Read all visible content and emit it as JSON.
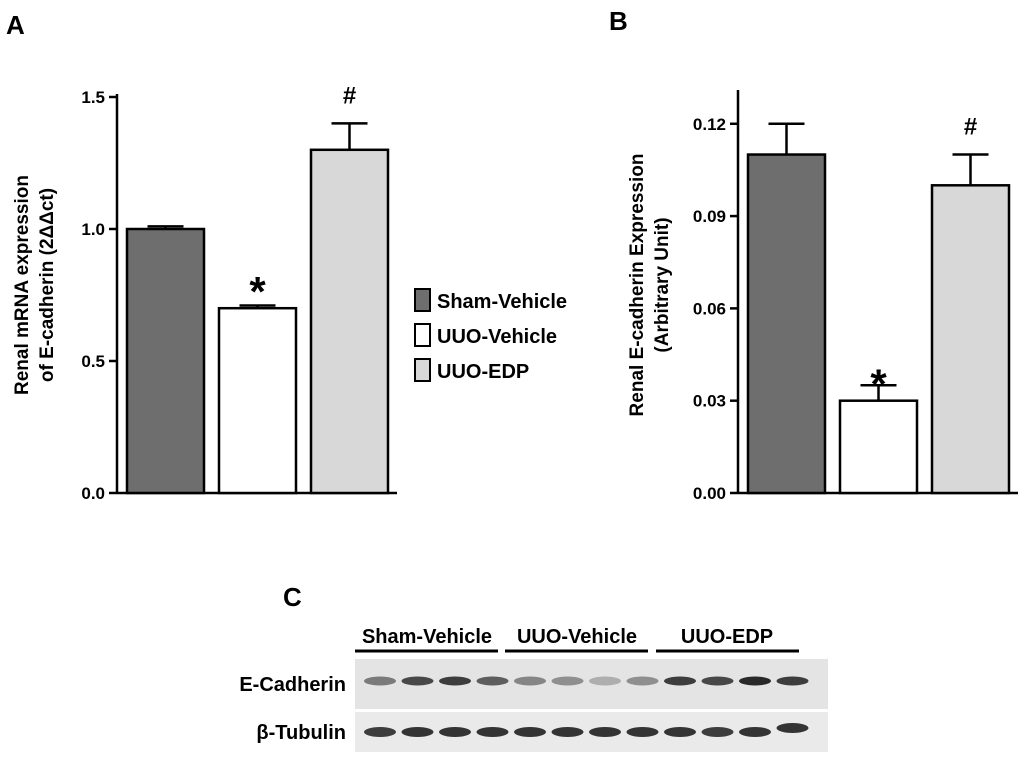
{
  "panels": {
    "a": "A",
    "b": "B",
    "c": "C"
  },
  "colors": {
    "sham_vehicle": "#6e6e6e",
    "uuo_vehicle": "#ffffff",
    "uuo_edp": "#d8d8d8"
  },
  "legend": {
    "items": [
      {
        "label": "Sham-Vehicle",
        "color": "#6e6e6e"
      },
      {
        "label": "UUO-Vehicle",
        "color": "#ffffff"
      },
      {
        "label": "UUO-EDP",
        "color": "#d8d8d8"
      }
    ]
  },
  "chart_data": [
    {
      "type": "bar",
      "panel": "A",
      "categories": [
        "Sham-Vehicle",
        "UUO-Vehicle",
        "UUO-EDP"
      ],
      "values": [
        1.0,
        0.7,
        1.3
      ],
      "errors": [
        0.01,
        0.01,
        0.1
      ],
      "significance": [
        "",
        "*",
        "#"
      ],
      "ylabel_line1": "Renal mRNA expression",
      "ylabel_line2": "of E-cadherin (2ΔΔct)",
      "ylim": [
        0,
        1.5
      ],
      "yticks": [
        0.0,
        0.5,
        1.0,
        1.5
      ],
      "ytick_labels": [
        "0.0",
        "0.5",
        "1.0",
        "1.5"
      ]
    },
    {
      "type": "bar",
      "panel": "B",
      "categories": [
        "Sham-Vehicle",
        "UUO-Vehicle",
        "UUO-EDP"
      ],
      "values": [
        0.11,
        0.03,
        0.1
      ],
      "errors": [
        0.01,
        0.005,
        0.01
      ],
      "significance": [
        "",
        "*",
        "#"
      ],
      "ylabel_line1": "Renal E-cadherin Expression",
      "ylabel_line2": "(Arbitrary Unit)",
      "ylim": [
        0,
        0.13
      ],
      "yticks": [
        0.0,
        0.03,
        0.06,
        0.09,
        0.12
      ],
      "ytick_labels": [
        "0.00",
        "0.03",
        "0.06",
        "0.09",
        "0.12"
      ]
    }
  ],
  "western_blot": {
    "groups": [
      "Sham-Vehicle",
      "UUO-Vehicle",
      "UUO-EDP"
    ],
    "rows": [
      {
        "label": "E-Cadherin",
        "intensities": [
          0.55,
          0.8,
          0.85,
          0.7,
          0.5,
          0.45,
          0.3,
          0.45,
          0.85,
          0.8,
          0.95,
          0.85
        ]
      },
      {
        "label": "β-Tubulin",
        "intensities": [
          0.85,
          0.9,
          0.9,
          0.9,
          0.9,
          0.9,
          0.9,
          0.9,
          0.9,
          0.85,
          0.9,
          0.9
        ]
      }
    ]
  }
}
